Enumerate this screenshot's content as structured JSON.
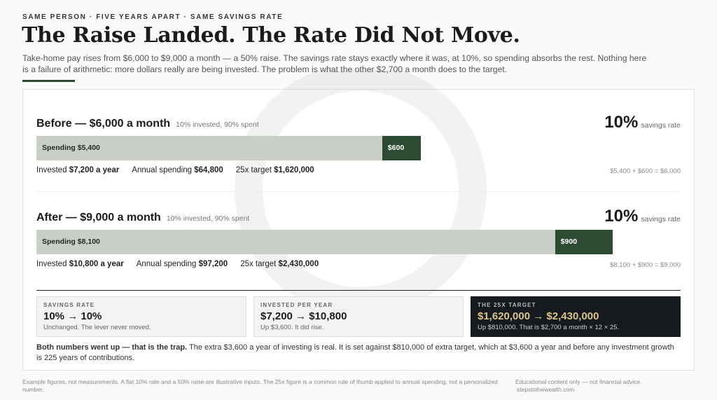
{
  "header": {
    "kicker": "SAME PERSON · FIVE YEARS APART · SAME SAVINGS RATE",
    "title": "The Raise Landed. The Rate Did Not Move.",
    "subtitle": "Take-home pay rises from $6,000 to $9,000 a month — a 50% raise. The savings rate stays exactly where it was, at 10%, so spending absorbs the rest. Nothing here is a failure of arithmetic: more dollars really are being invested. The problem is what the other $2,700 a month does to the target."
  },
  "panels": [
    {
      "title": "Before — $6,000 a month",
      "note": "10% invested, 90% spent",
      "rate": "10%",
      "rate_label": "savings rate",
      "segments": [
        {
          "name": "Spending",
          "value": 5400,
          "label": "$5,400"
        },
        {
          "value": 600,
          "label": "$600"
        }
      ],
      "stats": [
        {
          "label": "Invested",
          "value": "$7,200 a year"
        },
        {
          "label": "Annual spending",
          "value": "$64,800"
        },
        {
          "label": "25x target",
          "value": "$1,620,000"
        }
      ],
      "formula": "$5,400 + $600 = $6,000"
    },
    {
      "title": "After — $9,000 a month",
      "note": "10% invested, 90% spent",
      "rate": "10%",
      "rate_label": "savings rate",
      "segments": [
        {
          "name": "Spending",
          "value": 8100,
          "label": "$8,100"
        },
        {
          "value": 900,
          "label": "$900"
        }
      ],
      "stats": [
        {
          "label": "Invested",
          "value": "$10,800 a year"
        },
        {
          "label": "Annual spending",
          "value": "$97,200"
        },
        {
          "label": "25x target",
          "value": "$2,430,000"
        }
      ],
      "formula": "$8,100 + $900 = $9,000"
    }
  ],
  "cards": [
    {
      "label": "SAVINGS RATE",
      "value": "10% → 10%",
      "note": "Unchanged. The lever never moved."
    },
    {
      "label": "INVESTED PER YEAR",
      "value": "$7,200 → $10,800",
      "note": "Up $3,600. It did rise."
    },
    {
      "label": "THE 25X TARGET",
      "value": "$1,620,000 → $2,430,000",
      "note": "Up $810,000. That is $2,700 a month × 12 × 25."
    }
  ],
  "summary": {
    "lead": "Both numbers went up — that is the trap.",
    "text": "The extra $3,600 a year of investing is real. It is set against $810,000 of extra target, which at $3,600 a year and before any investment growth is 225 years of contributions."
  },
  "footer": {
    "disclaimer": "Example figures, not measurements. A flat 10% rate and a 50% raise are illustrative inputs. The 25x figure is a common rule of thumb applied to annual spending, not a personalized number.",
    "notice": "Educational content only — not financial advice.",
    "site": "stepstothewealth.com"
  }
}
